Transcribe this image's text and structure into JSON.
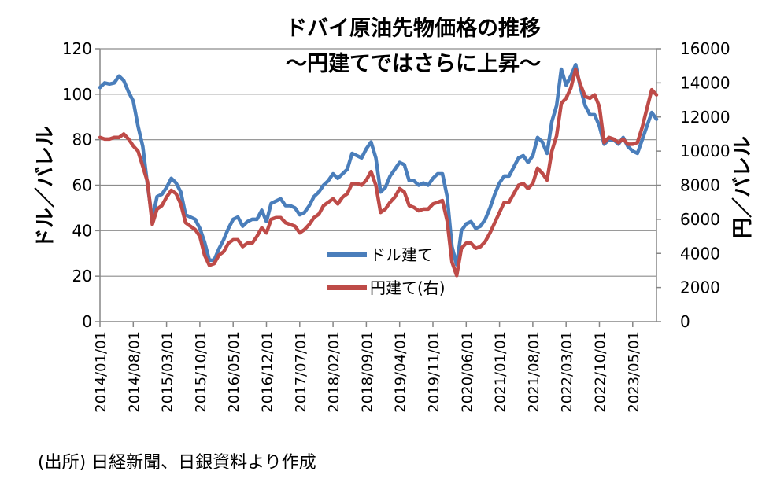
{
  "chart_data": {
    "type": "line",
    "title": "ドバイ原油先物価格の推移",
    "subtitle": "～円建てではさらに上昇～",
    "ylabel_left": "ドル／バレル",
    "ylabel_right": "円／バレル",
    "y_left_ticks": [
      "0",
      "20",
      "40",
      "60",
      "80",
      "100",
      "120"
    ],
    "y_right_ticks": [
      "0",
      "2000",
      "4000",
      "6000",
      "8000",
      "10000",
      "12000",
      "14000",
      "16000"
    ],
    "ylim_left": [
      0,
      120
    ],
    "ylim_right": [
      0,
      16000
    ],
    "x_tick_labels": [
      "2014/01/01",
      "2014/08/01",
      "2015/03/01",
      "2015/10/01",
      "2016/05/01",
      "2016/12/01",
      "2017/07/01",
      "2018/02/01",
      "2018/09/01",
      "2019/04/01",
      "2019/11/01",
      "2020/06/01",
      "2021/01/01",
      "2021/08/01",
      "2022/03/01",
      "2022/10/01",
      "2023/05/01"
    ],
    "x_start": "2014/01",
    "x_end": "2023/12",
    "grid": true,
    "legend_position": "center",
    "series": [
      {
        "name": "ドル建て",
        "axis": "left",
        "color": "#4a7ebb",
        "values": [
          103,
          105,
          104.5,
          105,
          108,
          106,
          101,
          97,
          86,
          77,
          60,
          45,
          55,
          56,
          59,
          63,
          61,
          57,
          47,
          46,
          45,
          41,
          35,
          27,
          27,
          32,
          36,
          41,
          45,
          46,
          42,
          44,
          45,
          45,
          49,
          44,
          52,
          53,
          54,
          51,
          51,
          50,
          47,
          48,
          51,
          55,
          57,
          60,
          62,
          65,
          63,
          65,
          67,
          74,
          73,
          72,
          76,
          79,
          72,
          57,
          59,
          64,
          67,
          70,
          69,
          62,
          62,
          60,
          61,
          60,
          63,
          65,
          65,
          55,
          33,
          25,
          40,
          43,
          44,
          41,
          42,
          45,
          50,
          56,
          61,
          64,
          64,
          68,
          72,
          73,
          70,
          73,
          81,
          79,
          74,
          88,
          95,
          111,
          104,
          108,
          113,
          103,
          95,
          91,
          91,
          86,
          78,
          80,
          80,
          78,
          81,
          77,
          75,
          74,
          80,
          86,
          92,
          89
        ]
      },
      {
        "name": "円建て(右)",
        "axis": "right",
        "color": "#be4b48",
        "values": [
          10800,
          10700,
          10700,
          10800,
          10800,
          11000,
          10700,
          10300,
          10000,
          9100,
          8200,
          5700,
          6600,
          6800,
          7300,
          7700,
          7500,
          6900,
          5800,
          5600,
          5400,
          5000,
          3900,
          3300,
          3400,
          3900,
          4100,
          4600,
          4800,
          4800,
          4400,
          4600,
          4600,
          5000,
          5500,
          5200,
          6000,
          6100,
          6100,
          5800,
          5700,
          5600,
          5200,
          5400,
          5700,
          6100,
          6300,
          6800,
          7000,
          7200,
          6900,
          7300,
          7500,
          8100,
          8100,
          8000,
          8300,
          8800,
          8000,
          6400,
          6600,
          7000,
          7300,
          7800,
          7600,
          6800,
          6700,
          6500,
          6600,
          6600,
          6900,
          7000,
          7100,
          5900,
          3500,
          2700,
          4300,
          4600,
          4600,
          4300,
          4400,
          4700,
          5200,
          5800,
          6400,
          7000,
          7000,
          7500,
          8000,
          8100,
          7800,
          8100,
          9000,
          8700,
          8300,
          10000,
          10900,
          12800,
          13100,
          13700,
          14800,
          13900,
          13200,
          13100,
          13300,
          12600,
          10500,
          10800,
          10700,
          10500,
          10700,
          10400,
          10400,
          10500,
          11400,
          12500,
          13600,
          13300
        ]
      }
    ]
  },
  "source": "(出所) 日経新聞、日銀資料より作成"
}
